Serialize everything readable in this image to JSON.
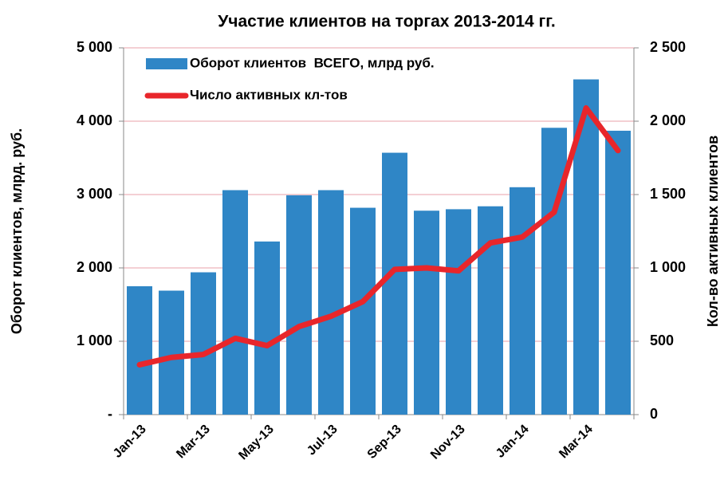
{
  "chart_data": {
    "type": "bar_line",
    "title": "Участие клиентов на торгах 2013-2014 гг.",
    "y_label": "Оборот клиентов, млрд. руб.",
    "y2_label": "Кол-во активных клиентов",
    "categories": [
      "Jan-13",
      null,
      "Mar-13",
      null,
      "May-13",
      null,
      "Jul-13",
      null,
      "Sep-13",
      null,
      "Nov-13",
      null,
      "Jan-14",
      null,
      "Mar-14",
      null
    ],
    "series": [
      {
        "name": "Оборот клиентов  ВСЕГО, млрд руб.",
        "type": "bar",
        "color": "#2f86c6",
        "values": [
          1750,
          1690,
          1940,
          3060,
          2360,
          2990,
          3060,
          2820,
          3570,
          2780,
          2800,
          2840,
          3100,
          3910,
          4570,
          3870
        ]
      },
      {
        "name": "Число активных кл-тов",
        "type": "line",
        "axis": "y2",
        "color": "#e8262b",
        "values": [
          340,
          390,
          410,
          520,
          470,
          600,
          670,
          770,
          990,
          1000,
          980,
          1170,
          1210,
          1380,
          2090,
          1800
        ]
      }
    ],
    "ylim": [
      0,
      5000
    ],
    "yticks": [
      {
        "value": 0,
        "label": "-"
      },
      {
        "value": 1000,
        "label": "1 000"
      },
      {
        "value": 2000,
        "label": "2 000"
      },
      {
        "value": 3000,
        "label": "3 000"
      },
      {
        "value": 4000,
        "label": "4 000"
      },
      {
        "value": 5000,
        "label": "5 000"
      }
    ],
    "y2lim": [
      0,
      2500
    ],
    "y2ticks": [
      0,
      500,
      {
        "value": 1000,
        "label": "1 000"
      },
      {
        "value": 1500,
        "label": "1 500"
      },
      {
        "value": 2000,
        "label": "2 000"
      },
      {
        "value": 2500,
        "label": "2 500"
      }
    ],
    "grid": true,
    "legend": "upper left"
  }
}
